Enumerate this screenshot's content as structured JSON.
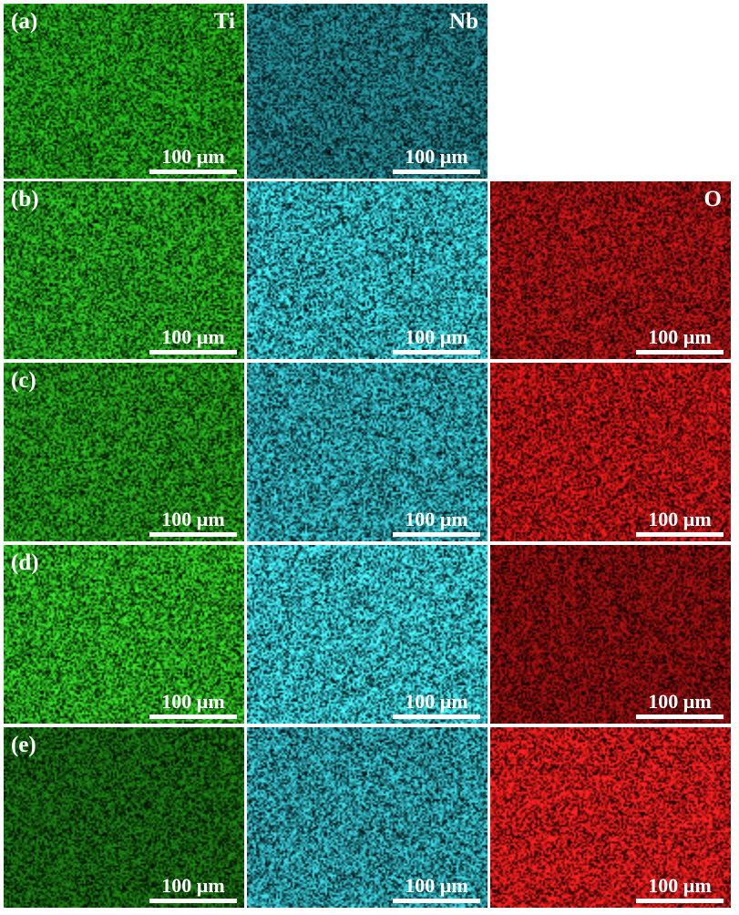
{
  "figure": {
    "scale_bar": "100 µm",
    "rows": [
      {
        "label": "(a)",
        "panels": [
          {
            "element": "Ti",
            "color": "#22a81a",
            "brightness": 1.0
          },
          {
            "element": "Nb",
            "color": "#2aa8b4",
            "brightness": 0.8
          },
          null
        ]
      },
      {
        "label": "(b)",
        "panels": [
          {
            "element": "",
            "color": "#28b020",
            "brightness": 1.0
          },
          {
            "element": "",
            "color": "#38d0dc",
            "brightness": 1.0
          },
          {
            "element": "O",
            "color": "#d01818",
            "brightness": 0.85
          }
        ]
      },
      {
        "label": "(c)",
        "panels": [
          {
            "element": "",
            "color": "#26a81c",
            "brightness": 0.95
          },
          {
            "element": "",
            "color": "#34c4d0",
            "brightness": 0.95
          },
          {
            "element": "",
            "color": "#d81818",
            "brightness": 0.95
          }
        ]
      },
      {
        "label": "(d)",
        "panels": [
          {
            "element": "",
            "color": "#2cb822",
            "brightness": 1.05
          },
          {
            "element": "",
            "color": "#3ad4e0",
            "brightness": 1.05
          },
          {
            "element": "",
            "color": "#c41414",
            "brightness": 0.75
          }
        ]
      },
      {
        "label": "(e)",
        "panels": [
          {
            "element": "",
            "color": "#1e8c16",
            "brightness": 0.8
          },
          {
            "element": "",
            "color": "#34c0cc",
            "brightness": 0.95
          },
          {
            "element": "",
            "color": "#e81c1c",
            "brightness": 1.05
          }
        ]
      }
    ]
  }
}
